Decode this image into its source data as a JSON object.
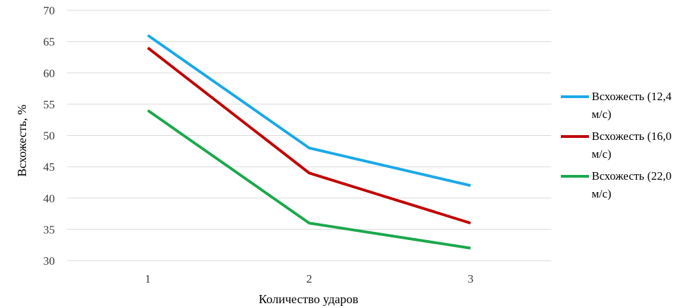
{
  "chart_data": {
    "type": "line",
    "title": "",
    "xlabel": "Количество ударов",
    "ylabel": "Всхожесть, %",
    "categories": [
      "1",
      "2",
      "3"
    ],
    "ylim": [
      30,
      70
    ],
    "yticks": [
      30,
      35,
      40,
      45,
      50,
      55,
      60,
      65,
      70
    ],
    "grid": true,
    "legend_position": "right",
    "series": [
      {
        "name": "Всхожесть (12,4 м/с)",
        "color": "#1AA9E8",
        "values": [
          66,
          48,
          42
        ]
      },
      {
        "name": "Всхожесть (16,0 м/с)",
        "color": "#C00000",
        "values": [
          64,
          44,
          36
        ]
      },
      {
        "name": "Всхожесть (22,0 м/с)",
        "color": "#1BA84D",
        "values": [
          54,
          36,
          32
        ]
      }
    ]
  }
}
